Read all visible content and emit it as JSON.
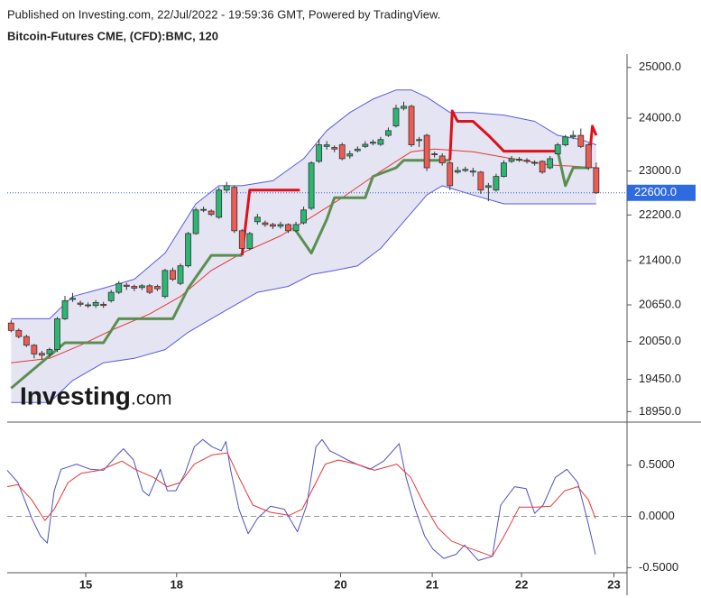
{
  "header": {
    "published": "Published on Investing.com, 22/Jul/2022 - 19:59:36 GMT, Powered by TradingView.",
    "symbol": "Bitcoin-Futures CME, (CFD):BMC, 120"
  },
  "watermark": {
    "brand": "Investing",
    "suffix": ".com"
  },
  "chart_data": [
    {
      "type": "candlestick",
      "log_scale": true,
      "xlim": [
        -0.5,
        80
      ],
      "ylim": [
        18790,
        25270
      ],
      "yticks": [
        {
          "value": 25000,
          "label": "25000.0"
        },
        {
          "value": 24000,
          "label": "24000.0"
        },
        {
          "value": 23000,
          "label": "23000.0"
        },
        {
          "value": 22200,
          "label": "22200.0"
        },
        {
          "value": 21400,
          "label": "21400.0"
        },
        {
          "value": 20650,
          "label": "20650.0"
        },
        {
          "value": 20050,
          "label": "20050.0"
        },
        {
          "value": 19450,
          "label": "19450.0"
        },
        {
          "value": 18950,
          "label": "18950.0"
        }
      ],
      "last_price": {
        "value": 22600,
        "label": "22600.0"
      },
      "up_color": "#2bb673",
      "down_color": "#ef5b53",
      "band_fill": "#e4e4f3",
      "open": [
        20350,
        20230,
        20130,
        19990,
        19860,
        19850,
        19920,
        20420,
        20740,
        20680,
        20640,
        20640,
        20660,
        20720,
        20860,
        20980,
        20960,
        20940,
        20970,
        20960,
        20790,
        21230,
        21010,
        21310,
        21870,
        22290,
        22270,
        22160,
        22650,
        22700,
        21920,
        21610,
        22080,
        22060,
        22030,
        22000,
        22030,
        21920,
        22060,
        22320,
        23180,
        23460,
        23440,
        23490,
        23280,
        23380,
        23460,
        23520,
        23500,
        23670,
        23850,
        24190,
        24230,
        23570,
        23670,
        23320,
        23280,
        23150,
        22980,
        23010,
        22980,
        22980,
        22700,
        22650,
        22900,
        23180,
        23200,
        23200,
        23150,
        23180,
        23060,
        23320,
        23490,
        23640,
        23670,
        23490,
        23060
      ],
      "high": [
        20400,
        20260,
        20160,
        20010,
        19900,
        19950,
        20450,
        20800,
        20850,
        20720,
        20690,
        20730,
        20700,
        20900,
        21050,
        21020,
        20990,
        21000,
        21000,
        20990,
        21260,
        21280,
        21350,
        21900,
        22330,
        22350,
        22300,
        22700,
        22800,
        22730,
        21950,
        21900,
        22220,
        22100,
        22060,
        22080,
        22050,
        22080,
        22350,
        23180,
        23600,
        23560,
        23480,
        23530,
        23380,
        23460,
        23560,
        23590,
        23640,
        23820,
        24260,
        24320,
        24260,
        23640,
        23700,
        23360,
        23330,
        23180,
        23080,
        23080,
        23060,
        23000,
        22780,
        22950,
        23200,
        23280,
        23260,
        23240,
        23200,
        23200,
        23280,
        23530,
        23680,
        23760,
        23800,
        23520,
        23160
      ],
      "low": [
        20200,
        20100,
        19960,
        19780,
        19760,
        19800,
        19880,
        20400,
        20700,
        20620,
        20600,
        20600,
        20600,
        20690,
        20830,
        20900,
        20880,
        20900,
        20830,
        20880,
        20760,
        21050,
        20980,
        21280,
        21850,
        22250,
        22180,
        22130,
        22600,
        21880,
        21550,
        21580,
        22030,
        21990,
        21950,
        21960,
        21880,
        21900,
        22030,
        22290,
        23150,
        23400,
        23350,
        23200,
        23230,
        23350,
        23430,
        23480,
        23470,
        23640,
        23820,
        24150,
        23450,
        23450,
        23000,
        23250,
        23100,
        22650,
        22950,
        22980,
        22900,
        22580,
        22450,
        22620,
        22880,
        23150,
        23170,
        23140,
        23100,
        22950,
        23030,
        23300,
        23460,
        23600,
        23430,
        23020,
        22580
      ],
      "close": [
        20230,
        20130,
        19990,
        19850,
        19830,
        19920,
        20420,
        20720,
        20760,
        20660,
        20650,
        20690,
        20640,
        20860,
        21010,
        20960,
        20930,
        20970,
        20860,
        20920,
        21230,
        21080,
        21310,
        21870,
        22290,
        22300,
        22210,
        22650,
        22730,
        21920,
        21610,
        21870,
        22160,
        22030,
        22000,
        22030,
        21920,
        22030,
        22290,
        23150,
        23490,
        23490,
        23410,
        23230,
        23320,
        23410,
        23500,
        23540,
        23590,
        23760,
        24190,
        24230,
        23490,
        23590,
        23060,
        23310,
        23150,
        22730,
        23010,
        23030,
        23000,
        22650,
        22730,
        22900,
        23150,
        23230,
        23220,
        23180,
        23160,
        22980,
        23230,
        23490,
        23640,
        23670,
        23460,
        23060,
        22600
      ],
      "series": [
        {
          "color": "#5a5ae0",
          "width": 1,
          "x": [
            0,
            5,
            8,
            12,
            16,
            20,
            24,
            27,
            30,
            34,
            38,
            41,
            44,
            47,
            50,
            52,
            54,
            57,
            60,
            64,
            68,
            71,
            74,
            76
          ],
          "values": [
            20420,
            20420,
            20790,
            20930,
            21080,
            21530,
            22400,
            22730,
            22730,
            22820,
            23230,
            23760,
            24110,
            24370,
            24550,
            24550,
            24410,
            24110,
            24110,
            24060,
            23940,
            23670,
            23590,
            23490
          ]
        },
        {
          "color": "#5a5ae0",
          "width": 1,
          "x": [
            0,
            5,
            8,
            12,
            16,
            20,
            23,
            26,
            29,
            32,
            36,
            39,
            42,
            45,
            48,
            51,
            54,
            56,
            60,
            64,
            68,
            72,
            76
          ],
          "values": [
            19090,
            19090,
            19430,
            19710,
            19780,
            19920,
            20200,
            20420,
            20640,
            20860,
            20960,
            21160,
            21230,
            21310,
            21610,
            22080,
            22560,
            22730,
            22560,
            22400,
            22400,
            22400,
            22400
          ]
        },
        {
          "color": "#e53935",
          "width": 1,
          "x": [
            0,
            5,
            9,
            13,
            18,
            22,
            26,
            30,
            35,
            39,
            43,
            47,
            50,
            52,
            55,
            60,
            65,
            70,
            73,
            76
          ],
          "values": [
            19710,
            19780,
            19990,
            20230,
            20500,
            20790,
            21230,
            21530,
            21830,
            22160,
            22510,
            22900,
            23180,
            23360,
            23410,
            23360,
            23230,
            23110,
            23090,
            23060
          ]
        },
        {
          "color": "#5b8f4f",
          "width": 3,
          "x": [
            0,
            7,
            12,
            14,
            21,
            23,
            26,
            30,
            30.5,
            37,
            39,
            41,
            42,
            46,
            47,
            50,
            51,
            57,
            57.5,
            71,
            72,
            73,
            75
          ],
          "values": [
            19310,
            20030,
            20030,
            20420,
            20420,
            20930,
            21490,
            21490,
            null,
            21920,
            21530,
            22120,
            22510,
            22510,
            22900,
            23060,
            23200,
            23200,
            null,
            23370,
            22730,
            23060,
            23060
          ]
        },
        {
          "color": "#e0101a",
          "width": 3,
          "x": [
            30,
            31,
            37.5,
            37.6,
            57,
            57.3,
            58,
            60,
            62,
            64,
            71,
            71.5,
            75,
            75.5,
            76
          ],
          "values": [
            21490,
            22650,
            22650,
            null,
            23200,
            24140,
            23940,
            23940,
            23670,
            23370,
            23370,
            null,
            23060,
            23845,
            23670
          ]
        }
      ]
    },
    {
      "type": "line",
      "xlim": [
        -0.5,
        80
      ],
      "ylim": [
        -0.55,
        0.92
      ],
      "yticks": [
        {
          "value": 0.5,
          "label": "0.5000"
        },
        {
          "value": 0,
          "label": "0.0000"
        },
        {
          "value": -0.5,
          "label": "-0.5000"
        }
      ],
      "reference_line": 0,
      "xticks": [
        {
          "value": 9.7,
          "label": "15"
        },
        {
          "value": 21.5,
          "label": "18"
        },
        {
          "value": 42.8,
          "label": "20"
        },
        {
          "value": 54.7,
          "label": "21"
        },
        {
          "value": 66.3,
          "label": "22"
        },
        {
          "value": 78.3,
          "label": "23"
        }
      ],
      "series": [
        {
          "color": "#5050c0",
          "x": [
            -0.5,
            0.9,
            2.7,
            3.8,
            4.7,
            5.6,
            6.5,
            8.5,
            10.3,
            12.0,
            13.8,
            14.6,
            15.9,
            17.1,
            17.9,
            19.4,
            20.3,
            21.4,
            22.6,
            23.8,
            24.9,
            26.1,
            27.3,
            27.9,
            28.5,
            29.6,
            30.8,
            32.0,
            33.7,
            35.5,
            37.2,
            38.4,
            39.6,
            40.4,
            41.4,
            42.5,
            43.7,
            44.9,
            46.6,
            48.4,
            50.4,
            51.3,
            52.5,
            53.7,
            54.8,
            56.2,
            57.8,
            58.9,
            60.7,
            62.5,
            63.6,
            65.4,
            66.9,
            68.0,
            69.1,
            70.7,
            72.2,
            73.6,
            74.8,
            75.9
          ],
          "values": [
            0.45,
            0.33,
            -0.02,
            -0.19,
            -0.26,
            0.25,
            0.46,
            0.51,
            0.46,
            0.45,
            0.6,
            0.66,
            0.55,
            0.25,
            0.2,
            0.46,
            0.25,
            0.25,
            0.42,
            0.68,
            0.75,
            0.68,
            0.64,
            0.73,
            0.46,
            0.07,
            -0.17,
            -0.02,
            0.1,
            0.07,
            -0.15,
            0.11,
            0.68,
            0.75,
            0.64,
            0.6,
            0.55,
            0.51,
            0.46,
            0.54,
            0.71,
            0.38,
            0.07,
            -0.19,
            -0.32,
            -0.41,
            -0.37,
            -0.28,
            -0.43,
            -0.39,
            0.11,
            0.29,
            0.27,
            0.03,
            0.11,
            0.38,
            0.46,
            0.33,
            -0.02,
            -0.37
          ]
        },
        {
          "color": "#e53935",
          "x": [
            -0.5,
            0.9,
            2.7,
            4.4,
            5.6,
            7.4,
            9.1,
            11.5,
            14.4,
            16.1,
            18.5,
            20.3,
            22.0,
            23.8,
            26.1,
            28.1,
            29.6,
            31.4,
            33.7,
            36.1,
            37.8,
            39.6,
            40.8,
            42.5,
            44.9,
            47.2,
            50.1,
            51.9,
            53.7,
            55.4,
            57.2,
            59.5,
            62.5,
            64.2,
            66.0,
            68.3,
            70.1,
            71.9,
            73.6,
            75.0,
            75.9
          ],
          "values": [
            0.29,
            0.31,
            0.16,
            -0.04,
            0.07,
            0.33,
            0.42,
            0.45,
            0.54,
            0.46,
            0.38,
            0.29,
            0.33,
            0.51,
            0.6,
            0.62,
            0.38,
            0.11,
            0.04,
            0.01,
            0.07,
            0.33,
            0.51,
            0.55,
            0.51,
            0.45,
            0.51,
            0.38,
            0.11,
            -0.11,
            -0.24,
            -0.31,
            -0.39,
            -0.17,
            0.09,
            0.09,
            0.1,
            0.25,
            0.29,
            0.16,
            -0.02
          ]
        }
      ]
    }
  ]
}
